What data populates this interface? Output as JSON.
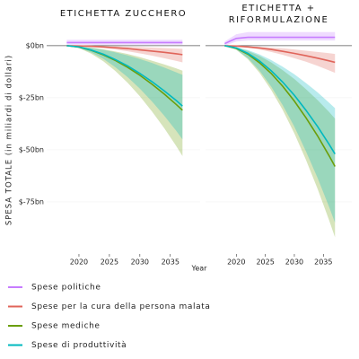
{
  "chart_data": {
    "type": "line",
    "y_label": "SPESA TOTALE (in miliardi di dollari)",
    "x_label": "Year",
    "x": [
      2018,
      2020,
      2022,
      2024,
      2026,
      2028,
      2030,
      2032,
      2034,
      2036,
      2037
    ],
    "xlim": [
      2014.7,
      2039.9
    ],
    "xticks": [
      2020,
      2025,
      2030,
      2035
    ],
    "ylim": [
      -100,
      9
    ],
    "yticks": [
      {
        "value": 0,
        "label": "$0bn"
      },
      {
        "value": -25,
        "label": "$-25bn"
      },
      {
        "value": -50,
        "label": "$-50bn"
      },
      {
        "value": -75,
        "label": "$-75bn"
      }
    ],
    "series": [
      {
        "name": "Spese politiche",
        "color": "#c77cff"
      },
      {
        "name": "Spese per la cura della persona malata",
        "color": "#e0645a"
      },
      {
        "name": "Spese mediche",
        "color": "#6b9e0a"
      },
      {
        "name": "Spese di produttività",
        "color": "#00b8bf"
      }
    ],
    "panels": [
      {
        "title": "ETICHETTA ZUCCHERO",
        "series": [
          {
            "values": [
              1.5,
              1.5,
              1.5,
              1.5,
              1.5,
              1.5,
              1.5,
              1.5,
              1.5,
              1.5,
              1.5
            ],
            "low": [
              0.5,
              0.5,
              0.5,
              0.5,
              0.5,
              0.5,
              0.5,
              0.5,
              0.5,
              0.5,
              0.5
            ],
            "high": [
              2.8,
              2.8,
              2.8,
              2.8,
              2.8,
              2.8,
              2.8,
              2.8,
              2.8,
              2.8,
              2.8
            ]
          },
          {
            "values": [
              0,
              -0.1,
              -0.3,
              -0.6,
              -1,
              -1.4,
              -2,
              -2.6,
              -3.2,
              -3.9,
              -4.3
            ],
            "low": [
              0,
              -0.2,
              -0.6,
              -1.1,
              -1.8,
              -2.7,
              -3.7,
              -4.8,
              -6,
              -7.3,
              -8
            ],
            "high": [
              0,
              0,
              -0.1,
              -0.2,
              -0.3,
              -0.5,
              -0.7,
              -0.9,
              -1.1,
              -1.4,
              -1.5
            ]
          },
          {
            "values": [
              0,
              -0.7,
              -2.2,
              -4.4,
              -7.1,
              -10.4,
              -14.2,
              -18.5,
              -23.2,
              -28.3,
              -31
            ],
            "low": [
              0,
              -1.2,
              -3.8,
              -7.5,
              -12.2,
              -17.8,
              -24.3,
              -31.6,
              -39.6,
              -48.3,
              -53
            ],
            "high": [
              0,
              -0.3,
              -0.9,
              -1.7,
              -2.8,
              -4,
              -5.5,
              -7.2,
              -9,
              -10.9,
              -12
            ]
          },
          {
            "values": [
              0,
              -0.6,
              -2.1,
              -4.1,
              -6.7,
              -9.7,
              -13.3,
              -17.3,
              -21.7,
              -26.4,
              -29
            ],
            "low": [
              0,
              -1,
              -3.2,
              -6.3,
              -10.4,
              -15.1,
              -20.6,
              -26.8,
              -33.6,
              -41,
              -45
            ],
            "high": [
              0,
              -0.3,
              -1,
              -2,
              -3.2,
              -4.7,
              -6.4,
              -8.3,
              -10.5,
              -12.8,
              -14
            ]
          }
        ]
      },
      {
        "title": "ETICHETTA + RIFORMULAZIONE",
        "series": [
          {
            "values": [
              1,
              3.5,
              4,
              4,
              4,
              4,
              4,
              4,
              4,
              4,
              4
            ],
            "low": [
              0,
              2,
              2.5,
              2.5,
              2.5,
              2.5,
              2.5,
              2.5,
              2.5,
              2.5,
              2.5
            ],
            "high": [
              2,
              5.5,
              6.5,
              6.5,
              6.5,
              6.5,
              6.5,
              6.5,
              6.5,
              6.5,
              6.5
            ]
          },
          {
            "values": [
              0,
              -0.2,
              -0.6,
              -1.1,
              -1.8,
              -2.7,
              -3.7,
              -4.8,
              -6,
              -7.3,
              -8
            ],
            "low": [
              0,
              -0.3,
              -0.9,
              -1.8,
              -3,
              -4.4,
              -6,
              -7.7,
              -9.7,
              -11.9,
              -13
            ],
            "high": [
              0,
              -0.1,
              -0.3,
              -0.6,
              -0.9,
              -1.3,
              -1.8,
              -2.4,
              -3,
              -3.6,
              -4
            ]
          },
          {
            "values": [
              0,
              -1.3,
              -4.1,
              -8.2,
              -13.3,
              -19.5,
              -26.6,
              -34.6,
              -43.3,
              -52.9,
              -58
            ],
            "low": [
              0,
              -2,
              -6.5,
              -13,
              -21.2,
              -30.9,
              -42.1,
              -54.8,
              -68.7,
              -83.9,
              -92
            ],
            "high": [
              0,
              -0.8,
              -2.5,
              -4.9,
              -8,
              -11.8,
              -16,
              -20.9,
              -26.1,
              -31.9,
              -35
            ]
          },
          {
            "values": [
              0,
              -1.1,
              -3.7,
              -7.3,
              -12,
              -17.5,
              -23.8,
              -31,
              -38.8,
              -47.4,
              -52
            ],
            "low": [
              0,
              -1.9,
              -6,
              -12,
              -19.6,
              -28.6,
              -38.9,
              -50.7,
              -63.5,
              -77.5,
              -85
            ],
            "high": [
              0,
              -0.7,
              -2.1,
              -4.2,
              -6.9,
              -10.1,
              -13.7,
              -17.9,
              -22.4,
              -27.4,
              -30
            ]
          }
        ]
      }
    ]
  }
}
